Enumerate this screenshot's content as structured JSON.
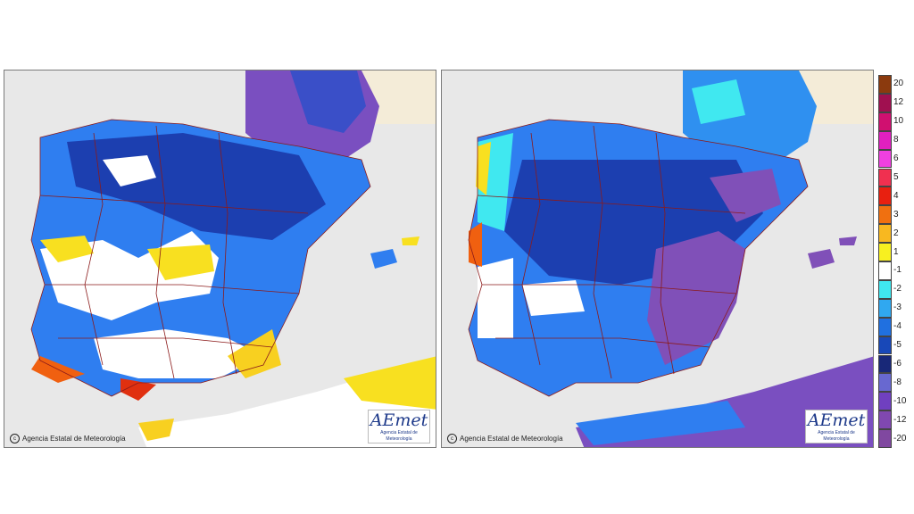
{
  "panels": [
    {
      "id": "left",
      "credit": "Agencia Estatal de Meteorología",
      "logo": "AEmet",
      "logo_sub": "Agencia Estatal de Meteorología"
    },
    {
      "id": "right",
      "credit": "Agencia Estatal de Meteorología",
      "logo": "AEmet",
      "logo_sub": "Agencia Estatal de Meteorología"
    }
  ],
  "legend": {
    "labels": [
      "20",
      "12",
      "10",
      "8",
      "6",
      "5",
      "4",
      "3",
      "2",
      "1",
      "-1",
      "-2",
      "-3",
      "-4",
      "-5",
      "-6",
      "-8",
      "-10",
      "-12",
      "-20"
    ],
    "colors": [
      "#8b3a0e",
      "#a01050",
      "#d01070",
      "#e020c0",
      "#f040e0",
      "#f03050",
      "#e82010",
      "#f07010",
      "#f8b820",
      "#f8f020",
      "#ffffff",
      "#40e8f0",
      "#30a8f0",
      "#2070e0",
      "#1848b8",
      "#182878",
      "#6868d0",
      "#7040c0",
      "#8048b0",
      "#8048a0"
    ]
  }
}
